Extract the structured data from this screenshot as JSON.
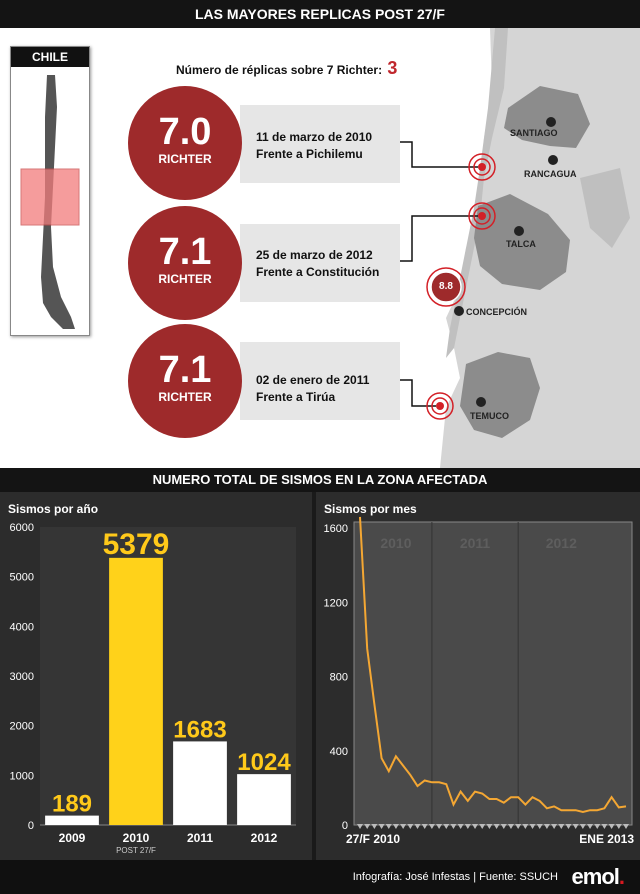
{
  "title": "LAS MAYORES REPLICAS POST 27/F",
  "map_inset": {
    "label": "CHILE"
  },
  "replicas_summary": {
    "label": "Número de réplicas sobre 7 Richter:",
    "count": "3"
  },
  "earthquakes": [
    {
      "magnitude": "7.0",
      "unit": "RICHTER",
      "date": "11 de marzo de 2010",
      "place": "Frente a Pichilemu"
    },
    {
      "magnitude": "7.1",
      "unit": "RICHTER",
      "date": "25 de marzo de 2012",
      "place": "Frente a Constitución"
    },
    {
      "magnitude": "7.1",
      "unit": "RICHTER",
      "date": "02 de enero de 2011",
      "place": "Frente a Tirúa"
    }
  ],
  "main_quake": {
    "magnitude": "8.8"
  },
  "cities": [
    "SANTIAGO",
    "RANCAGUA",
    "TALCA",
    "CONCEPCIÓN",
    "TEMUCO"
  ],
  "section_title": "NUMERO TOTAL DE SISMOS EN LA ZONA AFECTADA",
  "chart_data": [
    {
      "type": "bar",
      "title": "Sismos por año",
      "categories": [
        "2009",
        "2010",
        "2011",
        "2012"
      ],
      "category_sublabels": [
        "",
        "POST 27/F",
        "",
        ""
      ],
      "values": [
        189,
        5379,
        1683,
        1024
      ],
      "value_labels": [
        "189",
        "5379",
        "1683",
        "1024"
      ],
      "ylim": [
        0,
        6000
      ],
      "yticks": [
        "0",
        "1000",
        "2000",
        "3000",
        "4000",
        "5000",
        "6000"
      ],
      "bar_colors": [
        "#ffffff",
        "#ffd21a",
        "#ffffff",
        "#ffffff"
      ],
      "label_color": "#ffc91a"
    },
    {
      "type": "line",
      "title": "Sismos por mes",
      "year_labels": [
        "2010",
        "2011",
        "2012"
      ],
      "x_start_label": "27/F 2010",
      "x_end_label": "ENE 2013",
      "values": [
        1660,
        950,
        650,
        360,
        290,
        370,
        320,
        270,
        210,
        240,
        230,
        230,
        220,
        110,
        180,
        130,
        180,
        170,
        140,
        140,
        120,
        150,
        150,
        110,
        150,
        130,
        90,
        100,
        80,
        80,
        80,
        70,
        80,
        80,
        90,
        150,
        95,
        100
      ],
      "ylim": [
        0,
        1600
      ],
      "yticks": [
        "0",
        "400",
        "800",
        "1200",
        "1600"
      ],
      "line_color": "#f4a733"
    }
  ],
  "footer": {
    "credit": "Infografía: José Infestas | Fuente: SSUCH",
    "logo": "emol"
  }
}
